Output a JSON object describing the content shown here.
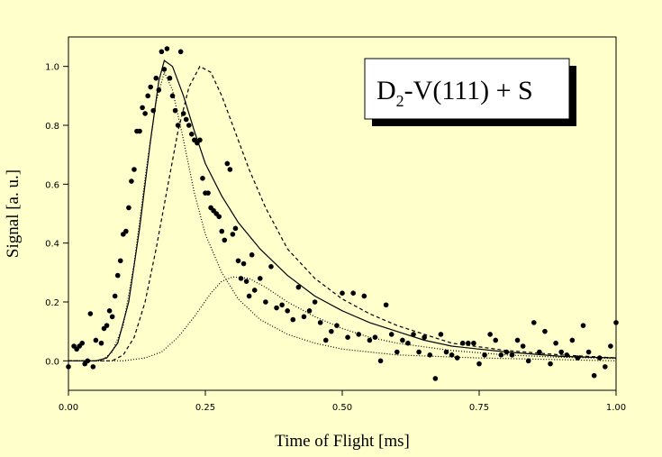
{
  "chart_data": {
    "type": "scatter",
    "x_label": "Time of Flight [ms]",
    "y_label": "Signal [a. u.]",
    "annotation": {
      "main": "D",
      "sub": "2",
      "rest": "-V(111) + S"
    },
    "xlim": [
      0,
      1
    ],
    "ylim": [
      -0.1,
      1.1
    ],
    "xticks": [
      {
        "value": 0,
        "label": "0.00"
      },
      {
        "value": 0.25,
        "label": "0.25"
      },
      {
        "value": 0.5,
        "label": "0.50"
      },
      {
        "value": 0.75,
        "label": "0.75"
      },
      {
        "value": 1,
        "label": "1.00"
      }
    ],
    "yticks": [
      {
        "value": 0,
        "label": "0.0"
      },
      0.2,
      0.4,
      0.6,
      0.8,
      {
        "value": 1,
        "label": "1.0"
      }
    ],
    "series": [
      {
        "type": "scatter",
        "color": "#000000",
        "x": [
          0.0,
          0.01,
          0.015,
          0.02,
          0.025,
          0.03,
          0.035,
          0.04,
          0.045,
          0.05,
          0.06,
          0.065,
          0.07,
          0.075,
          0.08,
          0.085,
          0.09,
          0.095,
          0.1,
          0.105,
          0.11,
          0.115,
          0.12,
          0.125,
          0.13,
          0.135,
          0.14,
          0.145,
          0.15,
          0.155,
          0.16,
          0.165,
          0.17,
          0.175,
          0.18,
          0.185,
          0.19,
          0.195,
          0.2,
          0.205,
          0.21,
          0.215,
          0.22,
          0.225,
          0.23,
          0.235,
          0.24,
          0.245,
          0.25,
          0.255,
          0.26,
          0.265,
          0.27,
          0.275,
          0.28,
          0.285,
          0.29,
          0.295,
          0.3,
          0.305,
          0.31,
          0.315,
          0.32,
          0.325,
          0.33,
          0.335,
          0.34,
          0.35,
          0.36,
          0.37,
          0.38,
          0.39,
          0.4,
          0.41,
          0.42,
          0.43,
          0.44,
          0.45,
          0.46,
          0.47,
          0.48,
          0.49,
          0.5,
          0.51,
          0.52,
          0.53,
          0.54,
          0.55,
          0.56,
          0.57,
          0.58,
          0.59,
          0.6,
          0.61,
          0.62,
          0.63,
          0.64,
          0.65,
          0.66,
          0.67,
          0.68,
          0.69,
          0.7,
          0.71,
          0.72,
          0.73,
          0.74,
          0.75,
          0.76,
          0.77,
          0.78,
          0.79,
          0.8,
          0.81,
          0.82,
          0.83,
          0.84,
          0.85,
          0.86,
          0.87,
          0.88,
          0.89,
          0.9,
          0.91,
          0.92,
          0.93,
          0.94,
          0.95,
          0.96,
          0.97,
          0.98,
          0.99,
          1.0
        ],
        "values": [
          -0.02,
          0.05,
          0.04,
          0.05,
          0.06,
          -0.01,
          0.0,
          0.16,
          -0.02,
          0.07,
          0.06,
          0.11,
          0.12,
          0.17,
          0.15,
          0.22,
          0.29,
          0.34,
          0.43,
          0.44,
          0.52,
          0.61,
          0.65,
          0.78,
          0.78,
          0.86,
          0.84,
          0.9,
          0.93,
          0.85,
          0.96,
          0.92,
          1.05,
          0.99,
          1.06,
          0.96,
          0.9,
          0.85,
          0.8,
          1.05,
          0.84,
          0.82,
          0.8,
          0.77,
          0.75,
          0.74,
          0.75,
          0.62,
          0.57,
          0.57,
          0.52,
          0.51,
          0.5,
          0.49,
          0.44,
          0.41,
          0.67,
          0.65,
          0.43,
          0.45,
          0.34,
          0.28,
          0.33,
          0.27,
          0.22,
          0.36,
          0.24,
          0.28,
          0.2,
          0.32,
          0.18,
          0.19,
          0.17,
          0.14,
          0.25,
          0.15,
          0.17,
          0.2,
          0.13,
          0.07,
          0.1,
          0.12,
          0.23,
          0.08,
          0.23,
          0.09,
          0.22,
          0.07,
          0.08,
          0.0,
          0.19,
          0.09,
          0.03,
          0.07,
          0.06,
          0.09,
          0.03,
          0.08,
          0.02,
          -0.06,
          0.09,
          0.03,
          0.02,
          0.01,
          0.06,
          0.06,
          0.06,
          -0.01,
          0.02,
          0.09,
          0.07,
          0.02,
          0.03,
          0.02,
          0.07,
          0.05,
          0.0,
          0.13,
          0.03,
          0.1,
          -0.01,
          0.06,
          0.03,
          0.02,
          0.07,
          0.01,
          0.12,
          0.03,
          -0.05,
          0.01,
          -0.02,
          0.05,
          0.13
        ]
      },
      {
        "type": "line",
        "color": "#000000",
        "dash": "solid",
        "x": [
          0,
          0.05,
          0.07,
          0.09,
          0.11,
          0.13,
          0.15,
          0.165,
          0.175,
          0.19,
          0.21,
          0.23,
          0.25,
          0.28,
          0.31,
          0.35,
          0.4,
          0.45,
          0.5,
          0.55,
          0.6,
          0.65,
          0.7,
          0.75,
          0.8,
          0.9,
          1.0
        ],
        "values": [
          0,
          0,
          0.01,
          0.06,
          0.2,
          0.45,
          0.75,
          0.95,
          1.02,
          1.0,
          0.9,
          0.78,
          0.67,
          0.56,
          0.47,
          0.38,
          0.29,
          0.22,
          0.17,
          0.13,
          0.1,
          0.07,
          0.05,
          0.04,
          0.03,
          0.015,
          0.01
        ]
      },
      {
        "type": "line",
        "color": "#000000",
        "dash": "dash",
        "x": [
          0,
          0.08,
          0.1,
          0.12,
          0.14,
          0.16,
          0.18,
          0.2,
          0.22,
          0.24,
          0.26,
          0.28,
          0.3,
          0.33,
          0.36,
          0.4,
          0.45,
          0.5,
          0.55,
          0.6,
          0.65,
          0.7,
          0.8,
          0.9,
          1.0
        ],
        "values": [
          0,
          0,
          0.02,
          0.08,
          0.2,
          0.38,
          0.58,
          0.78,
          0.93,
          1.0,
          0.98,
          0.9,
          0.8,
          0.65,
          0.52,
          0.38,
          0.28,
          0.21,
          0.16,
          0.12,
          0.09,
          0.06,
          0.035,
          0.02,
          0.01
        ]
      },
      {
        "type": "line",
        "color": "#000000",
        "dash": "dot",
        "x": [
          0,
          0.06,
          0.08,
          0.1,
          0.12,
          0.14,
          0.16,
          0.175,
          0.19,
          0.21,
          0.23,
          0.25,
          0.28,
          0.31,
          0.35,
          0.4,
          0.45,
          0.5,
          0.6,
          0.75,
          1.0
        ],
        "values": [
          0,
          0,
          0.03,
          0.12,
          0.33,
          0.62,
          0.88,
          0.98,
          0.92,
          0.75,
          0.57,
          0.43,
          0.3,
          0.21,
          0.14,
          0.09,
          0.06,
          0.04,
          0.02,
          0.01,
          0
        ]
      },
      {
        "type": "line",
        "color": "#000000",
        "dash": "dot",
        "x": [
          0,
          0.1,
          0.14,
          0.17,
          0.2,
          0.23,
          0.26,
          0.28,
          0.3,
          0.33,
          0.36,
          0.4,
          0.45,
          0.5,
          0.55,
          0.6,
          0.7,
          0.8,
          0.9,
          1.0
        ],
        "values": [
          0,
          0,
          0.01,
          0.03,
          0.08,
          0.15,
          0.23,
          0.27,
          0.285,
          0.28,
          0.25,
          0.2,
          0.15,
          0.11,
          0.08,
          0.06,
          0.035,
          0.02,
          0.012,
          0.008
        ]
      }
    ]
  }
}
